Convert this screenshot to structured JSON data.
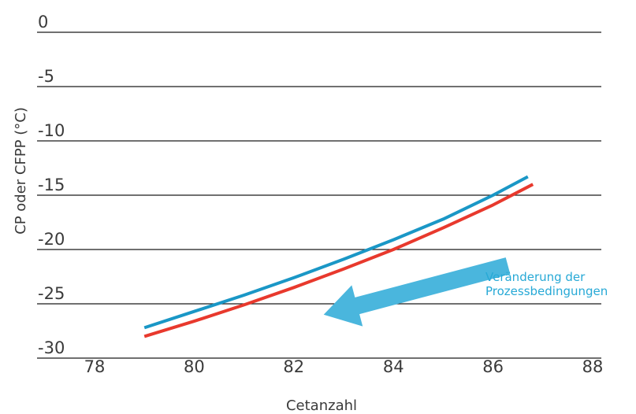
{
  "chart_data": {
    "type": "line",
    "title": "",
    "xlabel": "Cetanzahl",
    "ylabel": "CP oder CFPP (°C)",
    "xlim": [
      77,
      88
    ],
    "ylim": [
      -30,
      0
    ],
    "x_ticks": [
      "78",
      "80",
      "82",
      "84",
      "86",
      "88"
    ],
    "y_ticks": [
      "0",
      "-5",
      "-10",
      "-15",
      "-20",
      "-25",
      "-30"
    ],
    "grid": "horizontal",
    "series": [
      {
        "color": "#1a97c6",
        "x": [
          79.0,
          80.0,
          81.0,
          82.0,
          83.0,
          84.0,
          85.0,
          86.0,
          86.7
        ],
        "y": [
          -27.2,
          -25.7,
          -24.2,
          -22.6,
          -20.9,
          -19.1,
          -17.2,
          -15.0,
          -13.3
        ]
      },
      {
        "color": "#e8392d",
        "x": [
          79.0,
          80.0,
          81.0,
          82.0,
          83.0,
          84.0,
          85.0,
          86.0,
          86.8
        ],
        "y": [
          -28.0,
          -26.6,
          -25.1,
          -23.5,
          -21.8,
          -20.0,
          -18.0,
          -15.9,
          -14.0
        ]
      }
    ],
    "annotation": {
      "lines": [
        "Veränderung der",
        "Prozessbedingungen"
      ],
      "color": "#27a9d6",
      "arrow_from": [
        86.3,
        -21.5
      ],
      "arrow_to": [
        82.6,
        -26.0
      ],
      "arrow_color": "#4ab6dd"
    }
  }
}
